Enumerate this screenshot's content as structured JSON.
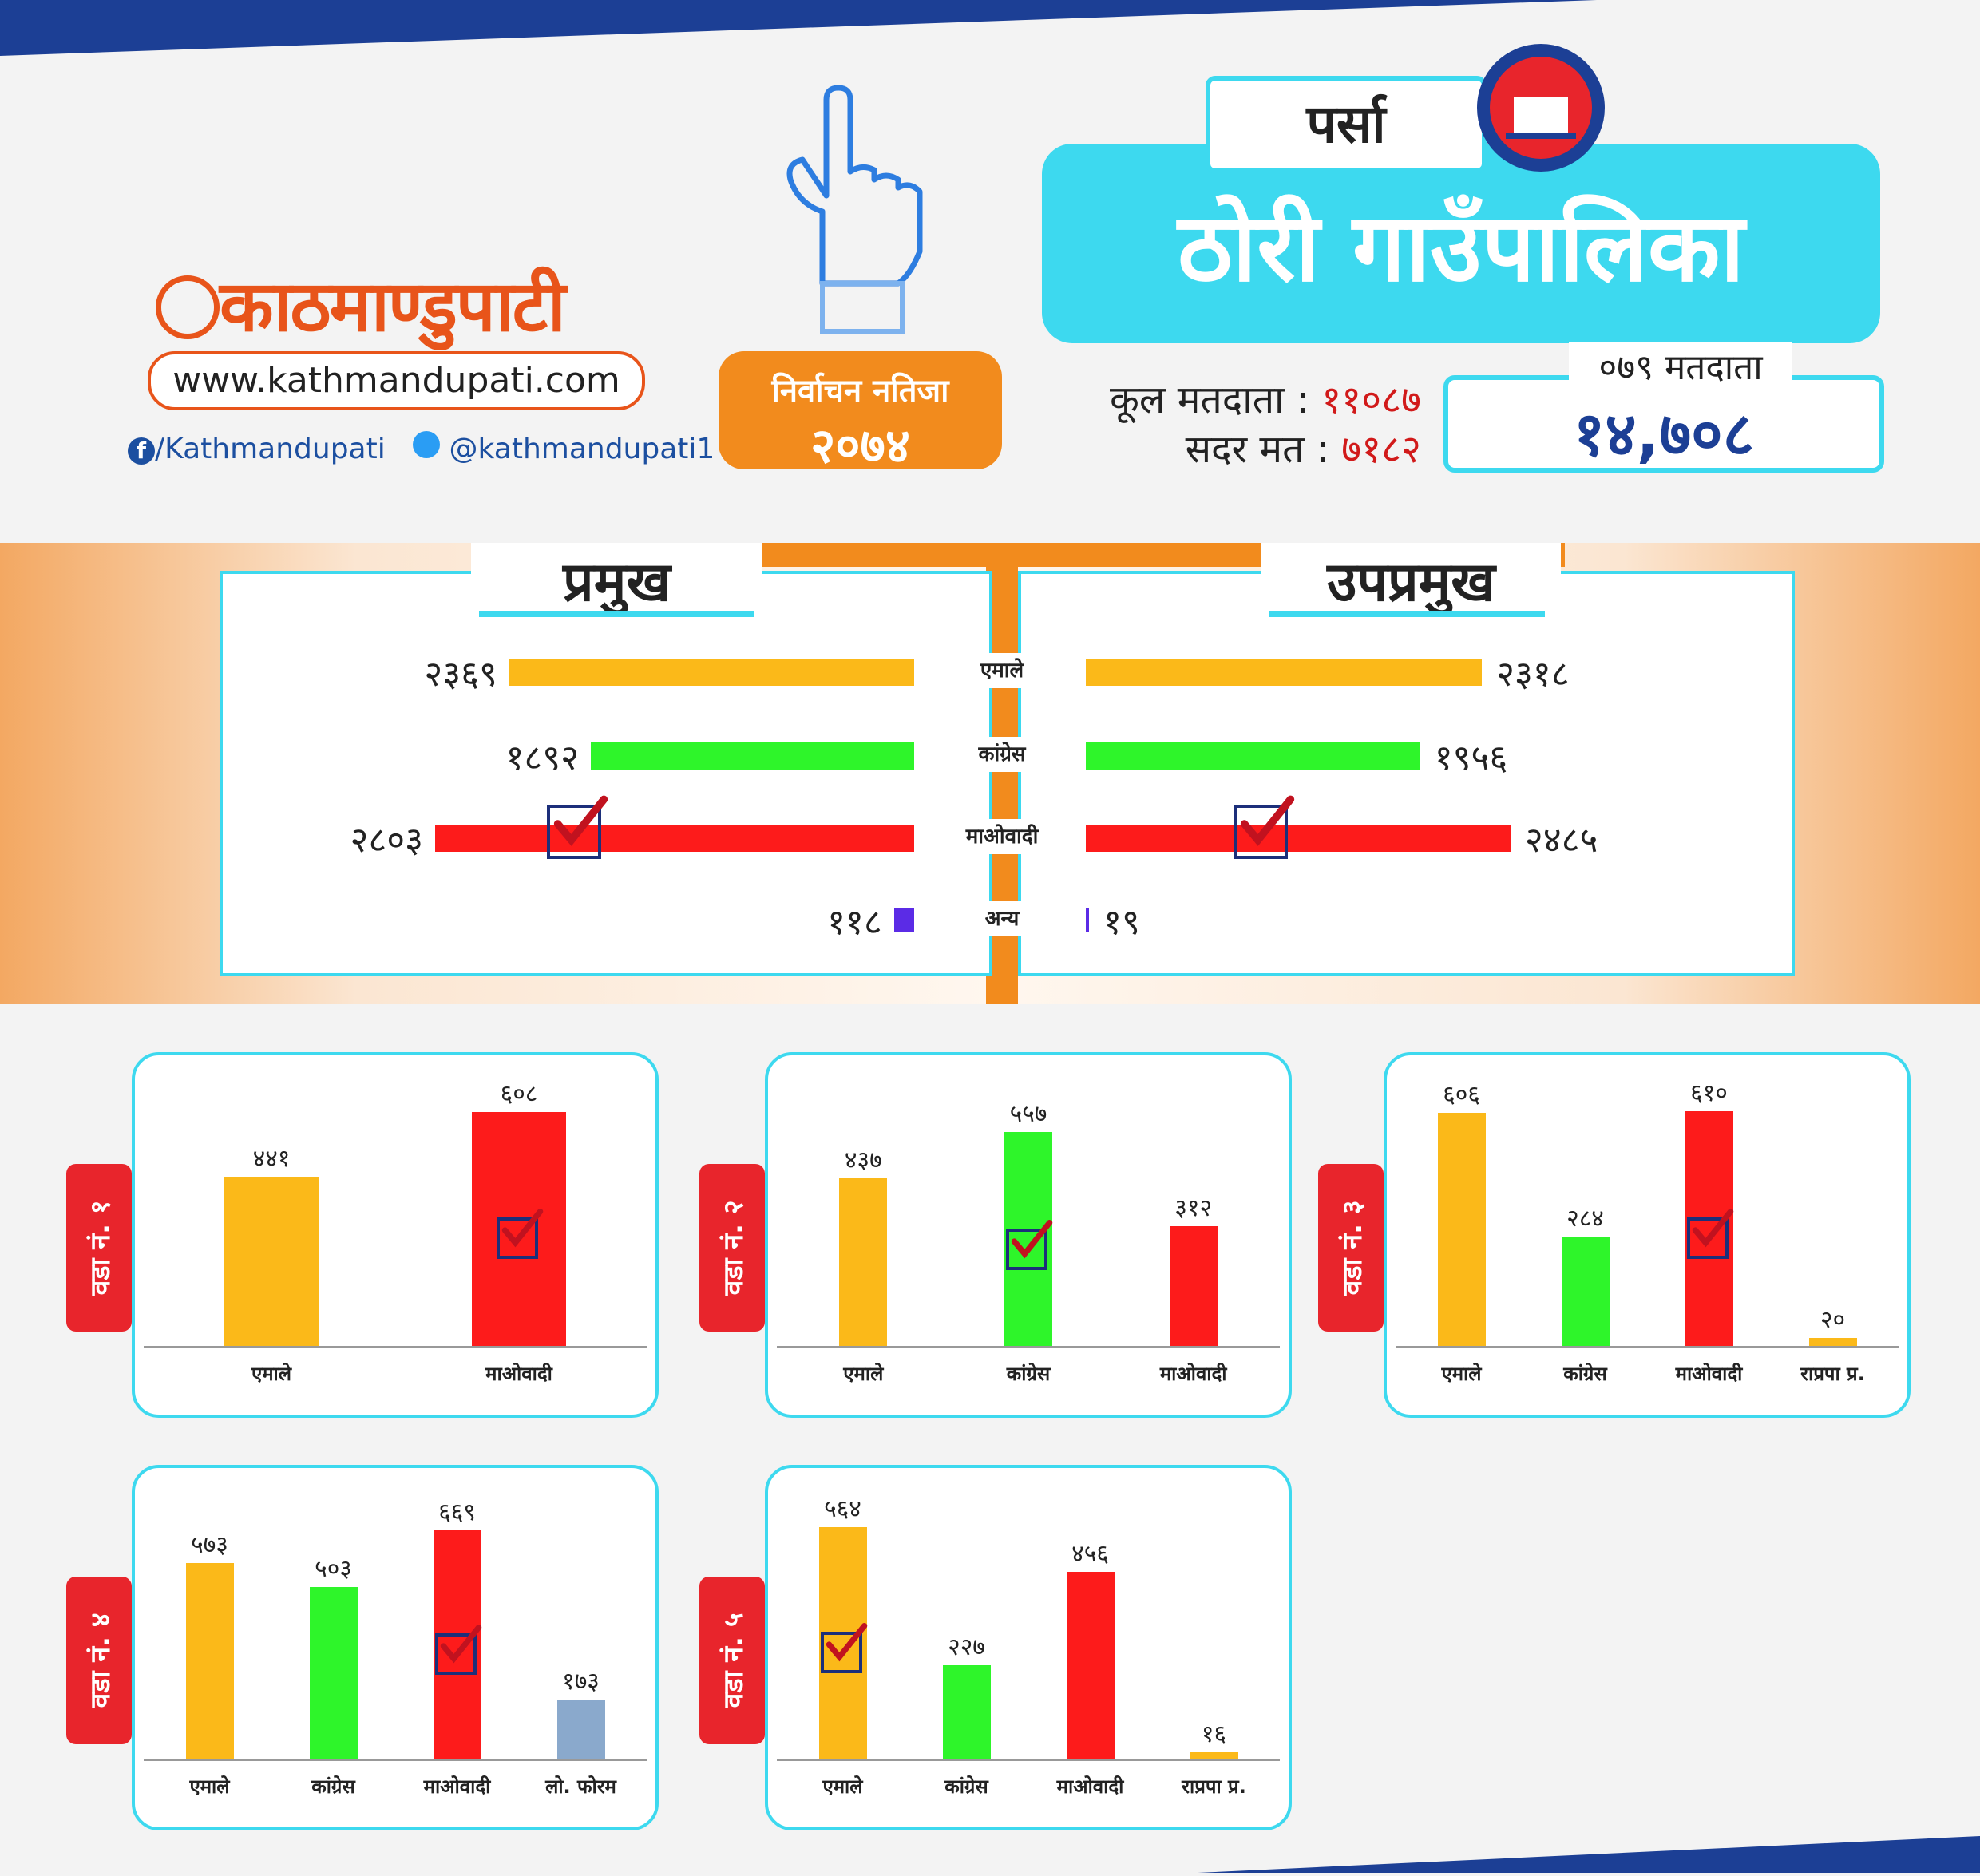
{
  "site": {
    "logo_text": "काठमाण्डुपाटी",
    "url": "www.kathmandupati.com",
    "facebook": "/Kathmandupati",
    "twitter": "@kathmandupati1"
  },
  "header": {
    "result_title": "निर्वाचन नतिजा",
    "result_year": "२०७४",
    "district": "पर्सा",
    "municipality": "ठोरी गाउँपालिका",
    "total_voters_label": "कूल मतदाता :",
    "total_voters": "११०८७",
    "valid_votes_label": "सदर मत :",
    "valid_votes": "७१८२",
    "voters_079_label": "०७९ मतदाता",
    "voters_079": "१४,७०८"
  },
  "colors": {
    "uml": "#fbb919",
    "congress": "#2ef52a",
    "maoist": "#fd1b1b",
    "other": "#5b2be6",
    "lokforum": "#8aa9cc",
    "accent": "#3dd9ef",
    "orange": "#f28b1d",
    "red": "#e8252c"
  },
  "chart_data": [
    {
      "type": "bar",
      "title": "प्रमुख",
      "categories": [
        "एमाले",
        "कांग्रेस",
        "माओवादी",
        "अन्य"
      ],
      "values": [
        2369,
        1892,
        2803,
        118
      ],
      "value_labels": [
        "२३६९",
        "१८९२",
        "२८०३",
        "११८"
      ],
      "winner": "माओवादी"
    },
    {
      "type": "bar",
      "title": "उपप्रमुख",
      "categories": [
        "एमाले",
        "कांग्रेस",
        "माओवादी",
        "अन्य"
      ],
      "values": [
        2318,
        1956,
        2485,
        19
      ],
      "value_labels": [
        "२३१८",
        "१९५६",
        "२४८५",
        "१९"
      ],
      "winner": "माओवादी"
    },
    {
      "type": "bar",
      "title": "वडा नं. १",
      "categories": [
        "एमाले",
        "माओवादी"
      ],
      "values": [
        441,
        608
      ],
      "value_labels": [
        "४४१",
        "६०८"
      ],
      "winner": "माओवादी"
    },
    {
      "type": "bar",
      "title": "वडा नं. २",
      "categories": [
        "एमाले",
        "कांग्रेस",
        "माओवादी"
      ],
      "values": [
        437,
        557,
        312
      ],
      "value_labels": [
        "४३७",
        "५५७",
        "३१२"
      ],
      "winner": "कांग्रेस"
    },
    {
      "type": "bar",
      "title": "वडा नं. ३",
      "categories": [
        "एमाले",
        "कांग्रेस",
        "माओवादी",
        "राप्रपा प्र."
      ],
      "values": [
        606,
        284,
        610,
        20
      ],
      "value_labels": [
        "६०६",
        "२८४",
        "६१०",
        "२०"
      ],
      "winner": "माओवादी"
    },
    {
      "type": "bar",
      "title": "वडा नं. ४",
      "categories": [
        "एमाले",
        "कांग्रेस",
        "माओवादी",
        "लो. फोरम"
      ],
      "values": [
        573,
        503,
        669,
        173
      ],
      "value_labels": [
        "५७३",
        "५०३",
        "६६९",
        "१७३"
      ],
      "winner": "माओवादी"
    },
    {
      "type": "bar",
      "title": "वडा नं. ५",
      "categories": [
        "एमाले",
        "कांग्रेस",
        "माओवादी",
        "राप्रपा प्र."
      ],
      "values": [
        564,
        227,
        456,
        16
      ],
      "value_labels": [
        "५६४",
        "२२७",
        "४५६",
        "१६"
      ],
      "winner": "एमाले"
    }
  ]
}
